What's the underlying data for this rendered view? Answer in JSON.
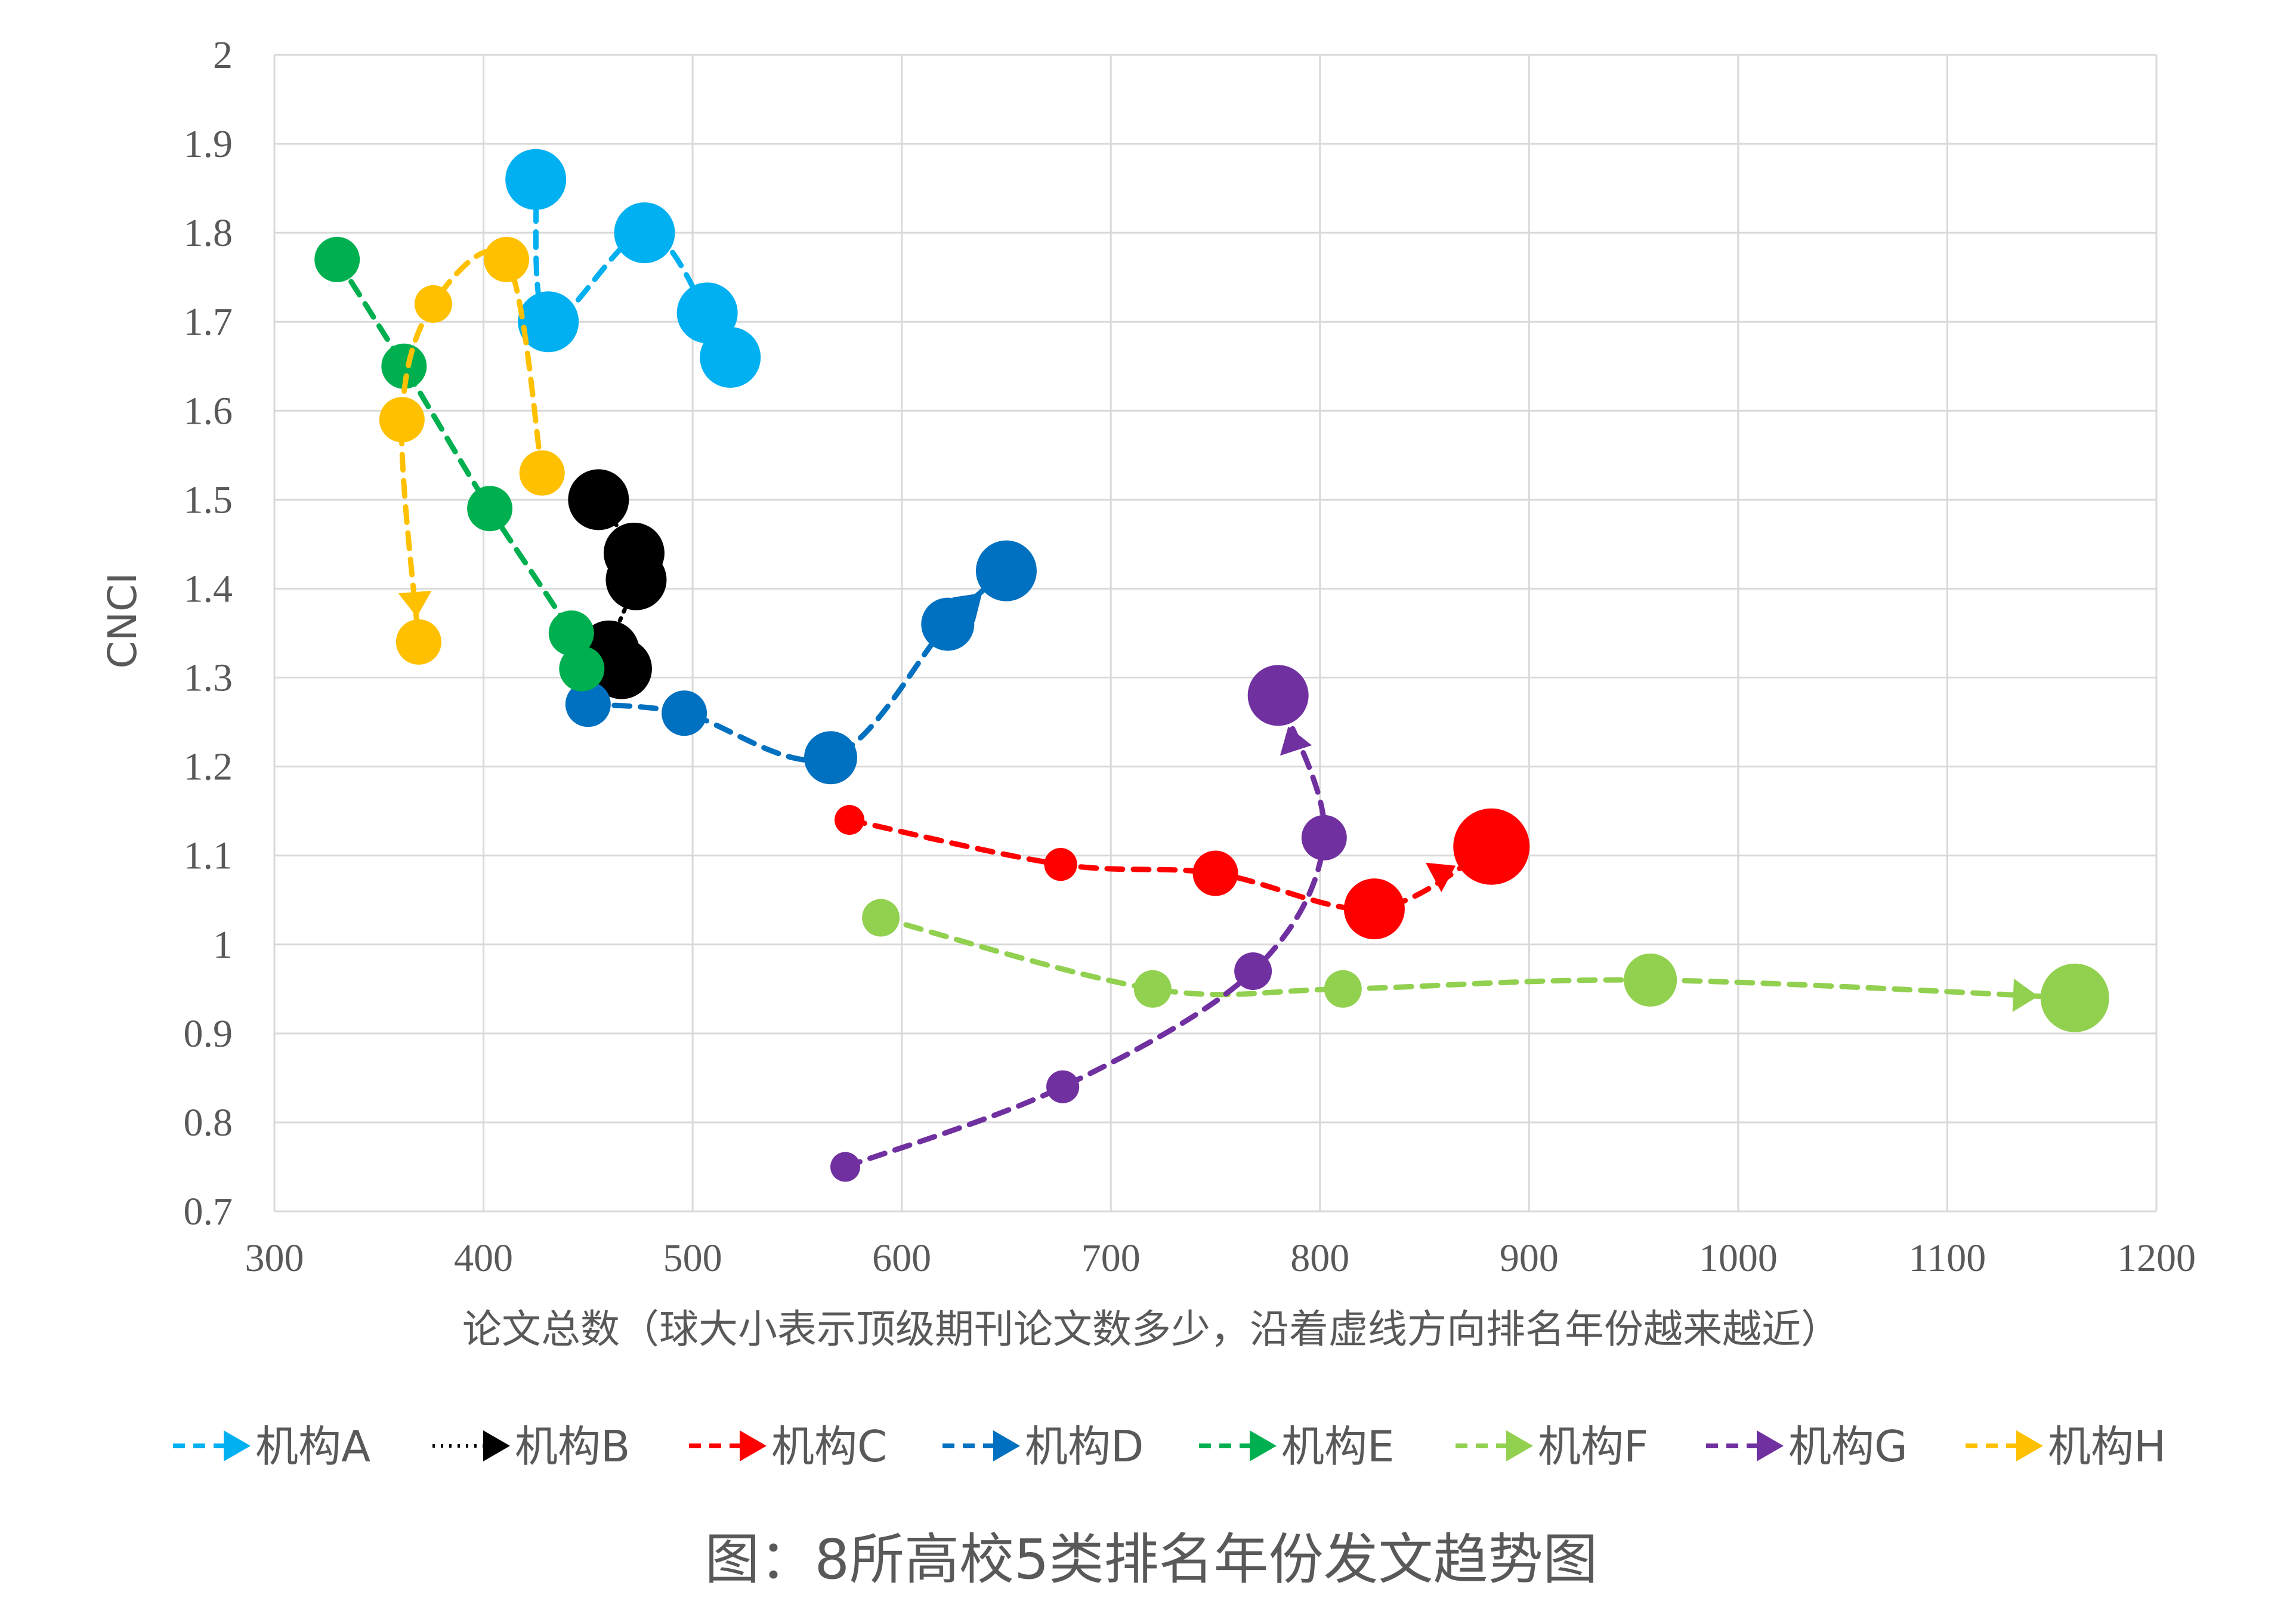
{
  "caption": "图：8所高校5类排名年份发文趋势图",
  "chart_data": {
    "type": "scatter",
    "xlabel": "论文总数（球大小表示顶级期刊论文数多少，沿着虚线方向排名年份越来越近）",
    "ylabel": "CNCI",
    "xlim": [
      300,
      1200
    ],
    "ylim": [
      0.7,
      2.0
    ],
    "x_ticks": [
      "300",
      "400",
      "500",
      "600",
      "700",
      "800",
      "900",
      "1000",
      "1100",
      "1200"
    ],
    "y_ticks": [
      "0.7",
      "0.8",
      "0.9",
      "1",
      "1.1",
      "1.2",
      "1.3",
      "1.4",
      "1.5",
      "1.6",
      "1.7",
      "1.8",
      "1.9",
      "2"
    ],
    "grid": true,
    "legend_position": "bottom",
    "series": [
      {
        "name": "机构A",
        "color": "#00b0f0",
        "line_style": "dashed",
        "x": [
          425,
          431,
          477,
          507,
          518
        ],
        "y": [
          1.86,
          1.7,
          1.8,
          1.71,
          1.66
        ],
        "point_size": [
          3,
          3,
          3,
          3,
          3
        ]
      },
      {
        "name": "机构B",
        "color": "#000000",
        "line_style": "dotted",
        "x": [
          455,
          472,
          473,
          460,
          466
        ],
        "y": [
          1.5,
          1.44,
          1.41,
          1.33,
          1.31
        ],
        "point_size": [
          3,
          3,
          3,
          3,
          3
        ]
      },
      {
        "name": "机构C",
        "color": "#ff0000",
        "line_style": "dashed",
        "x": [
          575,
          676,
          750,
          826,
          882
        ],
        "y": [
          1.14,
          1.09,
          1.08,
          1.04,
          1.11
        ],
        "point_size": [
          1,
          1.2,
          2,
          3,
          4
        ]
      },
      {
        "name": "机构D",
        "color": "#0070c0",
        "line_style": "dashed",
        "x": [
          450,
          496,
          566,
          622,
          650
        ],
        "y": [
          1.27,
          1.26,
          1.21,
          1.36,
          1.42
        ],
        "point_size": [
          2,
          2,
          2.5,
          2.5,
          3
        ]
      },
      {
        "name": "机构E",
        "color": "#00b050",
        "line_style": "dashed",
        "x": [
          330,
          362,
          403,
          442,
          447
        ],
        "y": [
          1.77,
          1.65,
          1.49,
          1.35,
          1.31
        ],
        "point_size": [
          2,
          2,
          2,
          2,
          2
        ]
      },
      {
        "name": "机构F",
        "color": "#92d050",
        "line_style": "dashed",
        "x": [
          590,
          720,
          811,
          958,
          1161
        ],
        "y": [
          1.03,
          0.95,
          0.95,
          0.96,
          0.94
        ],
        "point_size": [
          1.5,
          1.5,
          1.5,
          2.5,
          3.5
        ]
      },
      {
        "name": "机构G",
        "color": "#7030a0",
        "line_style": "dashed",
        "x": [
          573,
          677,
          768,
          802,
          780
        ],
        "y": [
          0.75,
          0.84,
          0.97,
          1.12,
          1.28
        ],
        "point_size": [
          1,
          1.2,
          1.5,
          2,
          3
        ]
      },
      {
        "name": "机构H",
        "color": "#ffc000",
        "line_style": "dashed",
        "x": [
          428,
          411,
          376,
          361,
          369
        ],
        "y": [
          1.53,
          1.77,
          1.72,
          1.59,
          1.34
        ],
        "point_size": [
          2,
          2,
          1.5,
          2,
          2
        ]
      }
    ]
  }
}
